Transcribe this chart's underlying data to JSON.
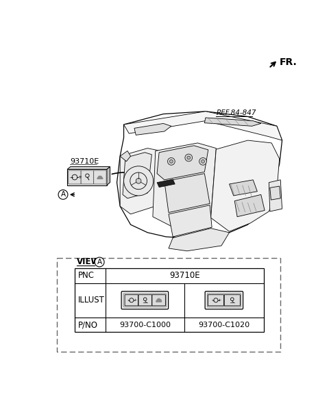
{
  "fig_width": 4.8,
  "fig_height": 5.86,
  "dpi": 100,
  "bg_color": "#ffffff",
  "fr_label": "FR.",
  "ref_label": "REF.84-847",
  "part_label_1": "93710E",
  "view_label": "VIEW",
  "pnc_label": "PNC",
  "pnc_value": "93710E",
  "illust_label": "ILLUST",
  "pno_label": "P/NO",
  "pno_1": "93700-C1000",
  "pno_2": "93700-C1020",
  "circle_A_label": "A"
}
